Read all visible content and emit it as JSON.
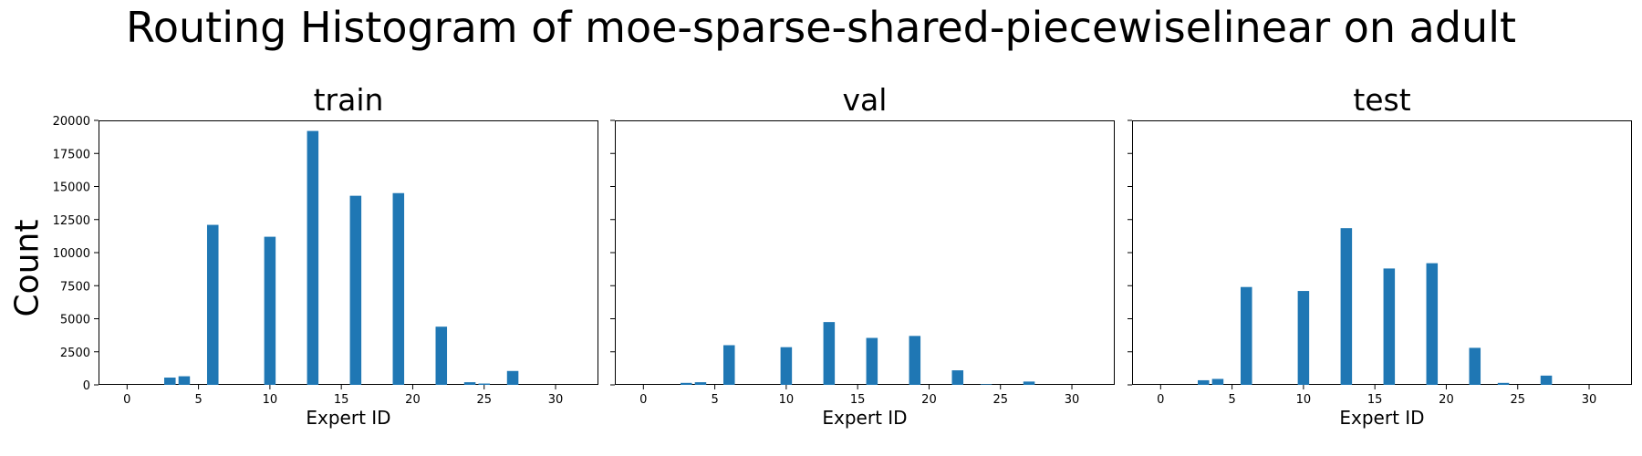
{
  "figure": {
    "title": "Routing Histogram of moe-sparse-shared-piecewiselinear on adult",
    "ylabel": "Count"
  },
  "chart_data": [
    {
      "type": "bar",
      "title": "train",
      "xlabel": "Expert ID",
      "ylabel": "Count",
      "xlim": [
        -2,
        33
      ],
      "ylim": [
        0,
        20000
      ],
      "xticks": [
        0,
        5,
        10,
        15,
        20,
        25,
        30
      ],
      "yticks": [
        0,
        2500,
        5000,
        7500,
        10000,
        12500,
        15000,
        17500,
        20000
      ],
      "bar_color": "#1f77b4",
      "x": [
        3,
        4,
        6,
        10,
        13,
        16,
        19,
        22,
        24,
        25,
        27
      ],
      "values": [
        550,
        650,
        12100,
        11200,
        19200,
        14300,
        14500,
        4400,
        200,
        100,
        1050
      ]
    },
    {
      "type": "bar",
      "title": "val",
      "xlabel": "Expert ID",
      "xlim": [
        -2,
        33
      ],
      "ylim": [
        0,
        20000
      ],
      "xticks": [
        0,
        5,
        10,
        15,
        20,
        25,
        30
      ],
      "bar_color": "#1f77b4",
      "x": [
        3,
        4,
        6,
        10,
        13,
        16,
        19,
        22,
        24,
        27
      ],
      "values": [
        150,
        200,
        3000,
        2850,
        4750,
        3550,
        3700,
        1100,
        50,
        250
      ]
    },
    {
      "type": "bar",
      "title": "test",
      "xlabel": "Expert ID",
      "xlim": [
        -2,
        33
      ],
      "ylim": [
        0,
        20000
      ],
      "xticks": [
        0,
        5,
        10,
        15,
        20,
        25,
        30
      ],
      "bar_color": "#1f77b4",
      "x": [
        3,
        4,
        6,
        10,
        13,
        16,
        19,
        22,
        24,
        27
      ],
      "values": [
        350,
        450,
        7400,
        7100,
        11850,
        8800,
        9200,
        2800,
        150,
        700
      ]
    }
  ]
}
